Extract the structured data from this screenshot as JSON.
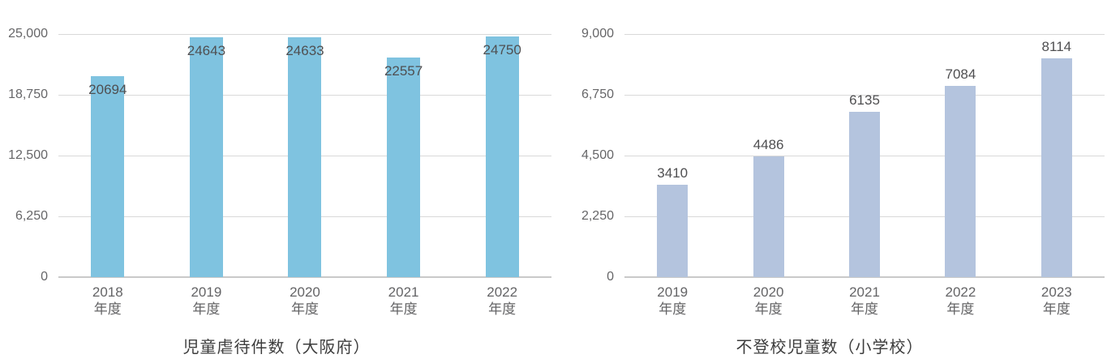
{
  "page": {
    "background": "#ffffff"
  },
  "colors": {
    "left_bar": "#7FC3E0",
    "right_bar": "#B4C4DE",
    "gridline": "#d9d9d9",
    "axis_line": "#c9c9c9",
    "tick_text": "#666668",
    "value_text": "#4f4f51",
    "title_text": "#3d3d3d"
  },
  "chart_data": [
    {
      "type": "bar",
      "title": "児童虐待件数（大阪府）",
      "categories": [
        "2018年度",
        "2019年度",
        "2020年度",
        "2021年度",
        "2022年度"
      ],
      "category_lines": [
        [
          "2018",
          "年度"
        ],
        [
          "2019",
          "年度"
        ],
        [
          "2020",
          "年度"
        ],
        [
          "2021",
          "年度"
        ],
        [
          "2022",
          "年度"
        ]
      ],
      "values": [
        20694,
        24643,
        24633,
        22557,
        24750
      ],
      "value_labels": [
        "20694",
        "24643",
        "24633",
        "22557",
        "24750"
      ],
      "ylim": [
        0,
        25000
      ],
      "y_tick_labels": [
        "25,000",
        "18,750",
        "12,500",
        "6,250",
        "0"
      ],
      "y_tick_values": [
        25000,
        18750,
        12500,
        6250,
        0
      ],
      "bar_color": "#7FC3E0",
      "value_label_position": "inside-top",
      "grid": true,
      "legend": "none",
      "xlabel": "",
      "ylabel": ""
    },
    {
      "type": "bar",
      "title": "不登校児童数（小学校）",
      "categories": [
        "2019年度",
        "2020年度",
        "2021年度",
        "2022年度",
        "2023年度"
      ],
      "category_lines": [
        [
          "2019",
          "年度"
        ],
        [
          "2020",
          "年度"
        ],
        [
          "2021",
          "年度"
        ],
        [
          "2022",
          "年度"
        ],
        [
          "2023",
          "年度"
        ]
      ],
      "values": [
        3410,
        4486,
        6135,
        7084,
        8114
      ],
      "value_labels": [
        "3410",
        "4486",
        "6135",
        "7084",
        "8114"
      ],
      "ylim": [
        0,
        9000
      ],
      "y_tick_labels": [
        "9,000",
        "6,750",
        "4,500",
        "2,250",
        "0"
      ],
      "y_tick_values": [
        9000,
        6750,
        4500,
        2250,
        0
      ],
      "bar_color": "#B4C4DE",
      "value_label_position": "above",
      "grid": true,
      "legend": "none",
      "xlabel": "",
      "ylabel": ""
    }
  ]
}
